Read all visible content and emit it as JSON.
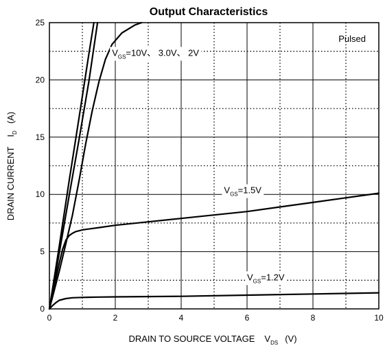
{
  "chart_data": {
    "type": "line",
    "title": "Output Characteristics",
    "annotation_pulsed": "Pulsed",
    "xlabel_main": "DRAIN TO SOURCE VOLTAGE",
    "xlabel_symbol": "V",
    "xlabel_sub": "DS",
    "xlabel_unit": "(V)",
    "ylabel_main": "DRAIN CURRENT",
    "ylabel_symbol": "I",
    "ylabel_sub": "D",
    "ylabel_unit": "(A)",
    "xlim": [
      0,
      10
    ],
    "ylim": [
      0,
      25
    ],
    "x_ticks": [
      0,
      2,
      4,
      6,
      8,
      10
    ],
    "y_ticks": [
      0,
      5,
      10,
      15,
      20,
      25
    ],
    "x_minor_grid": [
      1,
      3,
      5,
      7,
      9
    ],
    "y_minor_grid": [
      2.5,
      7.5,
      12.5,
      17.5,
      22.5
    ],
    "grid": true,
    "series": [
      {
        "name": "VGS=10V",
        "x": [
          0,
          0.3,
          0.6,
          0.9,
          1.2,
          1.46
        ],
        "y": [
          0,
          4.9,
          9.9,
          14.8,
          19.9,
          25
        ]
      },
      {
        "name": "VGS=3.0V",
        "x": [
          0,
          0.3,
          0.6,
          0.9,
          1.2,
          1.35
        ],
        "y": [
          0,
          5.5,
          11.2,
          16.7,
          22.3,
          25
        ]
      },
      {
        "name": "VGS=2V",
        "x": [
          0,
          0.3,
          0.5,
          0.7,
          0.9,
          1.1,
          1.3,
          1.5,
          1.7,
          1.9,
          2.2,
          2.6,
          2.8
        ],
        "y": [
          0,
          3.3,
          5.7,
          8.2,
          11.2,
          14.4,
          17.3,
          19.8,
          21.8,
          23.1,
          24.1,
          24.8,
          25
        ]
      },
      {
        "name": "VGS=1.5V",
        "x": [
          0,
          0.1,
          0.2,
          0.3,
          0.4,
          0.5,
          0.6,
          0.7,
          0.8,
          1.0,
          1.5,
          2,
          3,
          4,
          5,
          6,
          7,
          8,
          9,
          10
        ],
        "y": [
          0,
          1.3,
          2.7,
          4.0,
          5.2,
          6.0,
          6.4,
          6.6,
          6.75,
          6.9,
          7.1,
          7.3,
          7.6,
          7.9,
          8.2,
          8.5,
          8.9,
          9.3,
          9.7,
          10.1
        ]
      },
      {
        "name": "VGS=1.2V",
        "x": [
          0,
          0.1,
          0.2,
          0.3,
          0.5,
          0.7,
          1.0,
          1.5,
          2,
          4,
          6,
          8,
          10
        ],
        "y": [
          0,
          0.3,
          0.55,
          0.75,
          0.9,
          0.97,
          1.0,
          1.03,
          1.05,
          1.1,
          1.2,
          1.3,
          1.4
        ]
      }
    ],
    "labels": [
      {
        "parts": [
          "V",
          "GS",
          "=10V、 3.0V、 2V"
        ],
        "x": 1.9,
        "y": 22.1
      },
      {
        "parts": [
          "V",
          "GS",
          "=1.5V"
        ],
        "x": 5.3,
        "y": 10.1
      },
      {
        "parts": [
          "V",
          "GS",
          "=1.2V"
        ],
        "x": 6.0,
        "y": 2.5
      }
    ]
  }
}
